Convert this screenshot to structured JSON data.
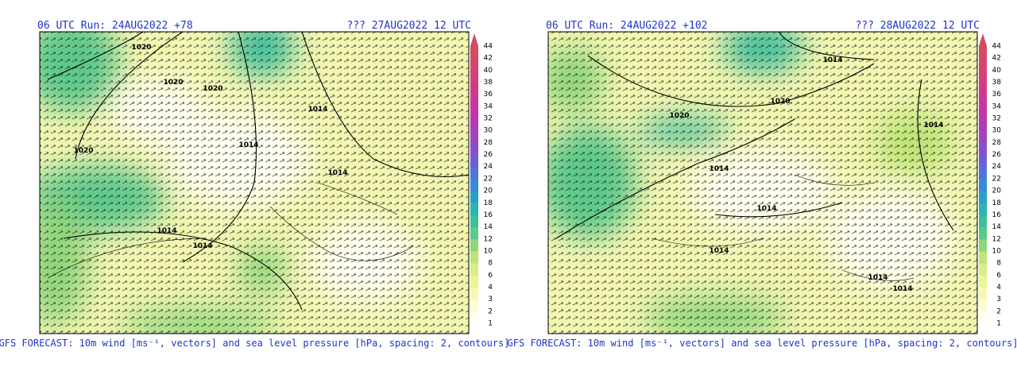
{
  "panels": [
    {
      "run": "06 UTC Run: 24AUG2022 +78",
      "valid": "??? 27AUG2022 12 UTC",
      "caption": "GFS FORECAST: 10m wind [ms⁻¹, vectors] and sea level pressure [hPa, spacing: 2, contours]",
      "isobars": [
        "1020",
        "1020",
        "1020",
        "1020",
        "1014",
        "1014",
        "1014",
        "1014",
        "1014"
      ]
    },
    {
      "run": "06 UTC Run: 24AUG2022 +102",
      "valid": "??? 28AUG2022 12 UTC",
      "caption": "GFS FORECAST: 10m wind [ms⁻¹, vectors] and sea level pressure [hPa, spacing: 2, contours]",
      "isobars": [
        "1014",
        "1020",
        "1020",
        "1014",
        "1014",
        "1014",
        "1014",
        "1014",
        "1014"
      ]
    }
  ],
  "colorbar": {
    "ticks": [
      1,
      2,
      3,
      4,
      6,
      8,
      10,
      12,
      14,
      16,
      18,
      20,
      22,
      24,
      26,
      28,
      30,
      32,
      34,
      36,
      38,
      40,
      42,
      44
    ],
    "colors": [
      "#fffff2",
      "#fdfdd0",
      "#f8f8b0",
      "#eaf59a",
      "#d6ee84",
      "#bde474",
      "#8fd67a",
      "#5cc98a",
      "#3dbf9a",
      "#2cb5b0",
      "#2a9fc8",
      "#3a88d8",
      "#4f73dc",
      "#6a5fd6",
      "#8650cc",
      "#9e45c0",
      "#b03cb4",
      "#c236a8",
      "#cc3698",
      "#d23a88",
      "#d54079",
      "#d6466c",
      "#d44c60"
    ]
  }
}
